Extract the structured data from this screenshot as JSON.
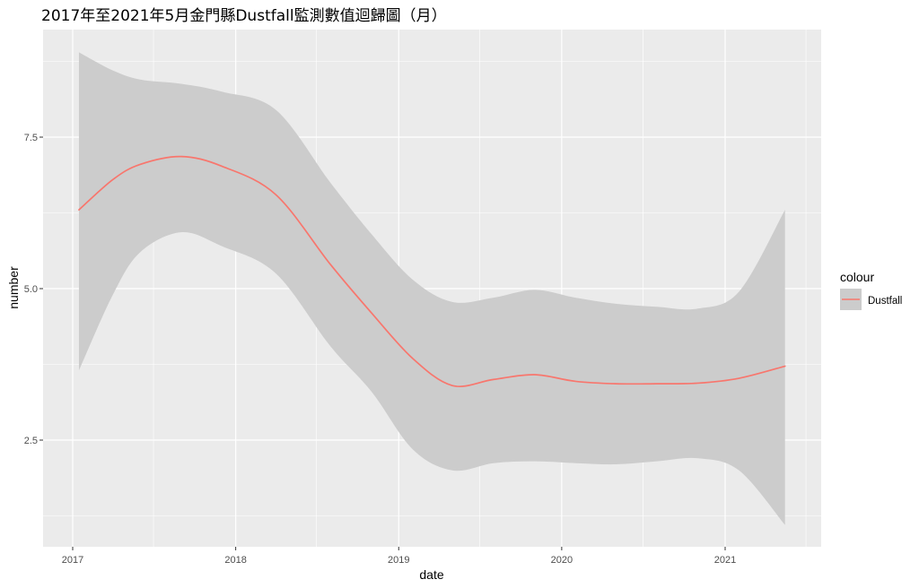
{
  "chart_data": {
    "type": "line",
    "title": "2017年至2021年5月金門縣Dustfall監測數值迴歸圖（月）",
    "xlabel": "date",
    "ylabel": "number",
    "x_axis": "date",
    "x_ticks": [
      "2017",
      "2018",
      "2019",
      "2020",
      "2021"
    ],
    "y_ticks": [
      "2.5",
      "5.0",
      "7.5"
    ],
    "ylim": [
      0.8,
      9.2
    ],
    "grid": true,
    "legend_title": "colour",
    "legend_position": "right",
    "colors": {
      "line": "#F8766D",
      "ribbon": "#cccccc",
      "panel": "#ebebeb",
      "grid": "#ffffff"
    },
    "series": [
      {
        "name": "Dustfall",
        "x": [
          "2017-01-15",
          "2017-04-01",
          "2017-06-01",
          "2017-09-01",
          "2017-12-01",
          "2018-04-01",
          "2018-08-01",
          "2018-11-01",
          "2019-02-01",
          "2019-05-01",
          "2019-08-01",
          "2019-11-01",
          "2020-02-01",
          "2020-05-01",
          "2020-08-01",
          "2020-11-01",
          "2021-02-01",
          "2021-05-15"
        ],
        "y": [
          6.3,
          6.8,
          7.05,
          7.18,
          7.02,
          6.55,
          5.4,
          4.6,
          3.85,
          3.4,
          3.5,
          3.58,
          3.47,
          3.43,
          3.43,
          3.44,
          3.52,
          3.72
        ],
        "lower": [
          3.65,
          4.9,
          5.6,
          5.93,
          5.7,
          5.25,
          4.05,
          3.3,
          2.35,
          2.0,
          2.12,
          2.15,
          2.12,
          2.1,
          2.15,
          2.2,
          2.0,
          1.1
        ],
        "upper": [
          8.9,
          8.6,
          8.45,
          8.38,
          8.25,
          7.95,
          6.75,
          5.9,
          5.15,
          4.78,
          4.85,
          4.98,
          4.85,
          4.75,
          4.7,
          4.67,
          4.95,
          6.3
        ]
      }
    ]
  }
}
